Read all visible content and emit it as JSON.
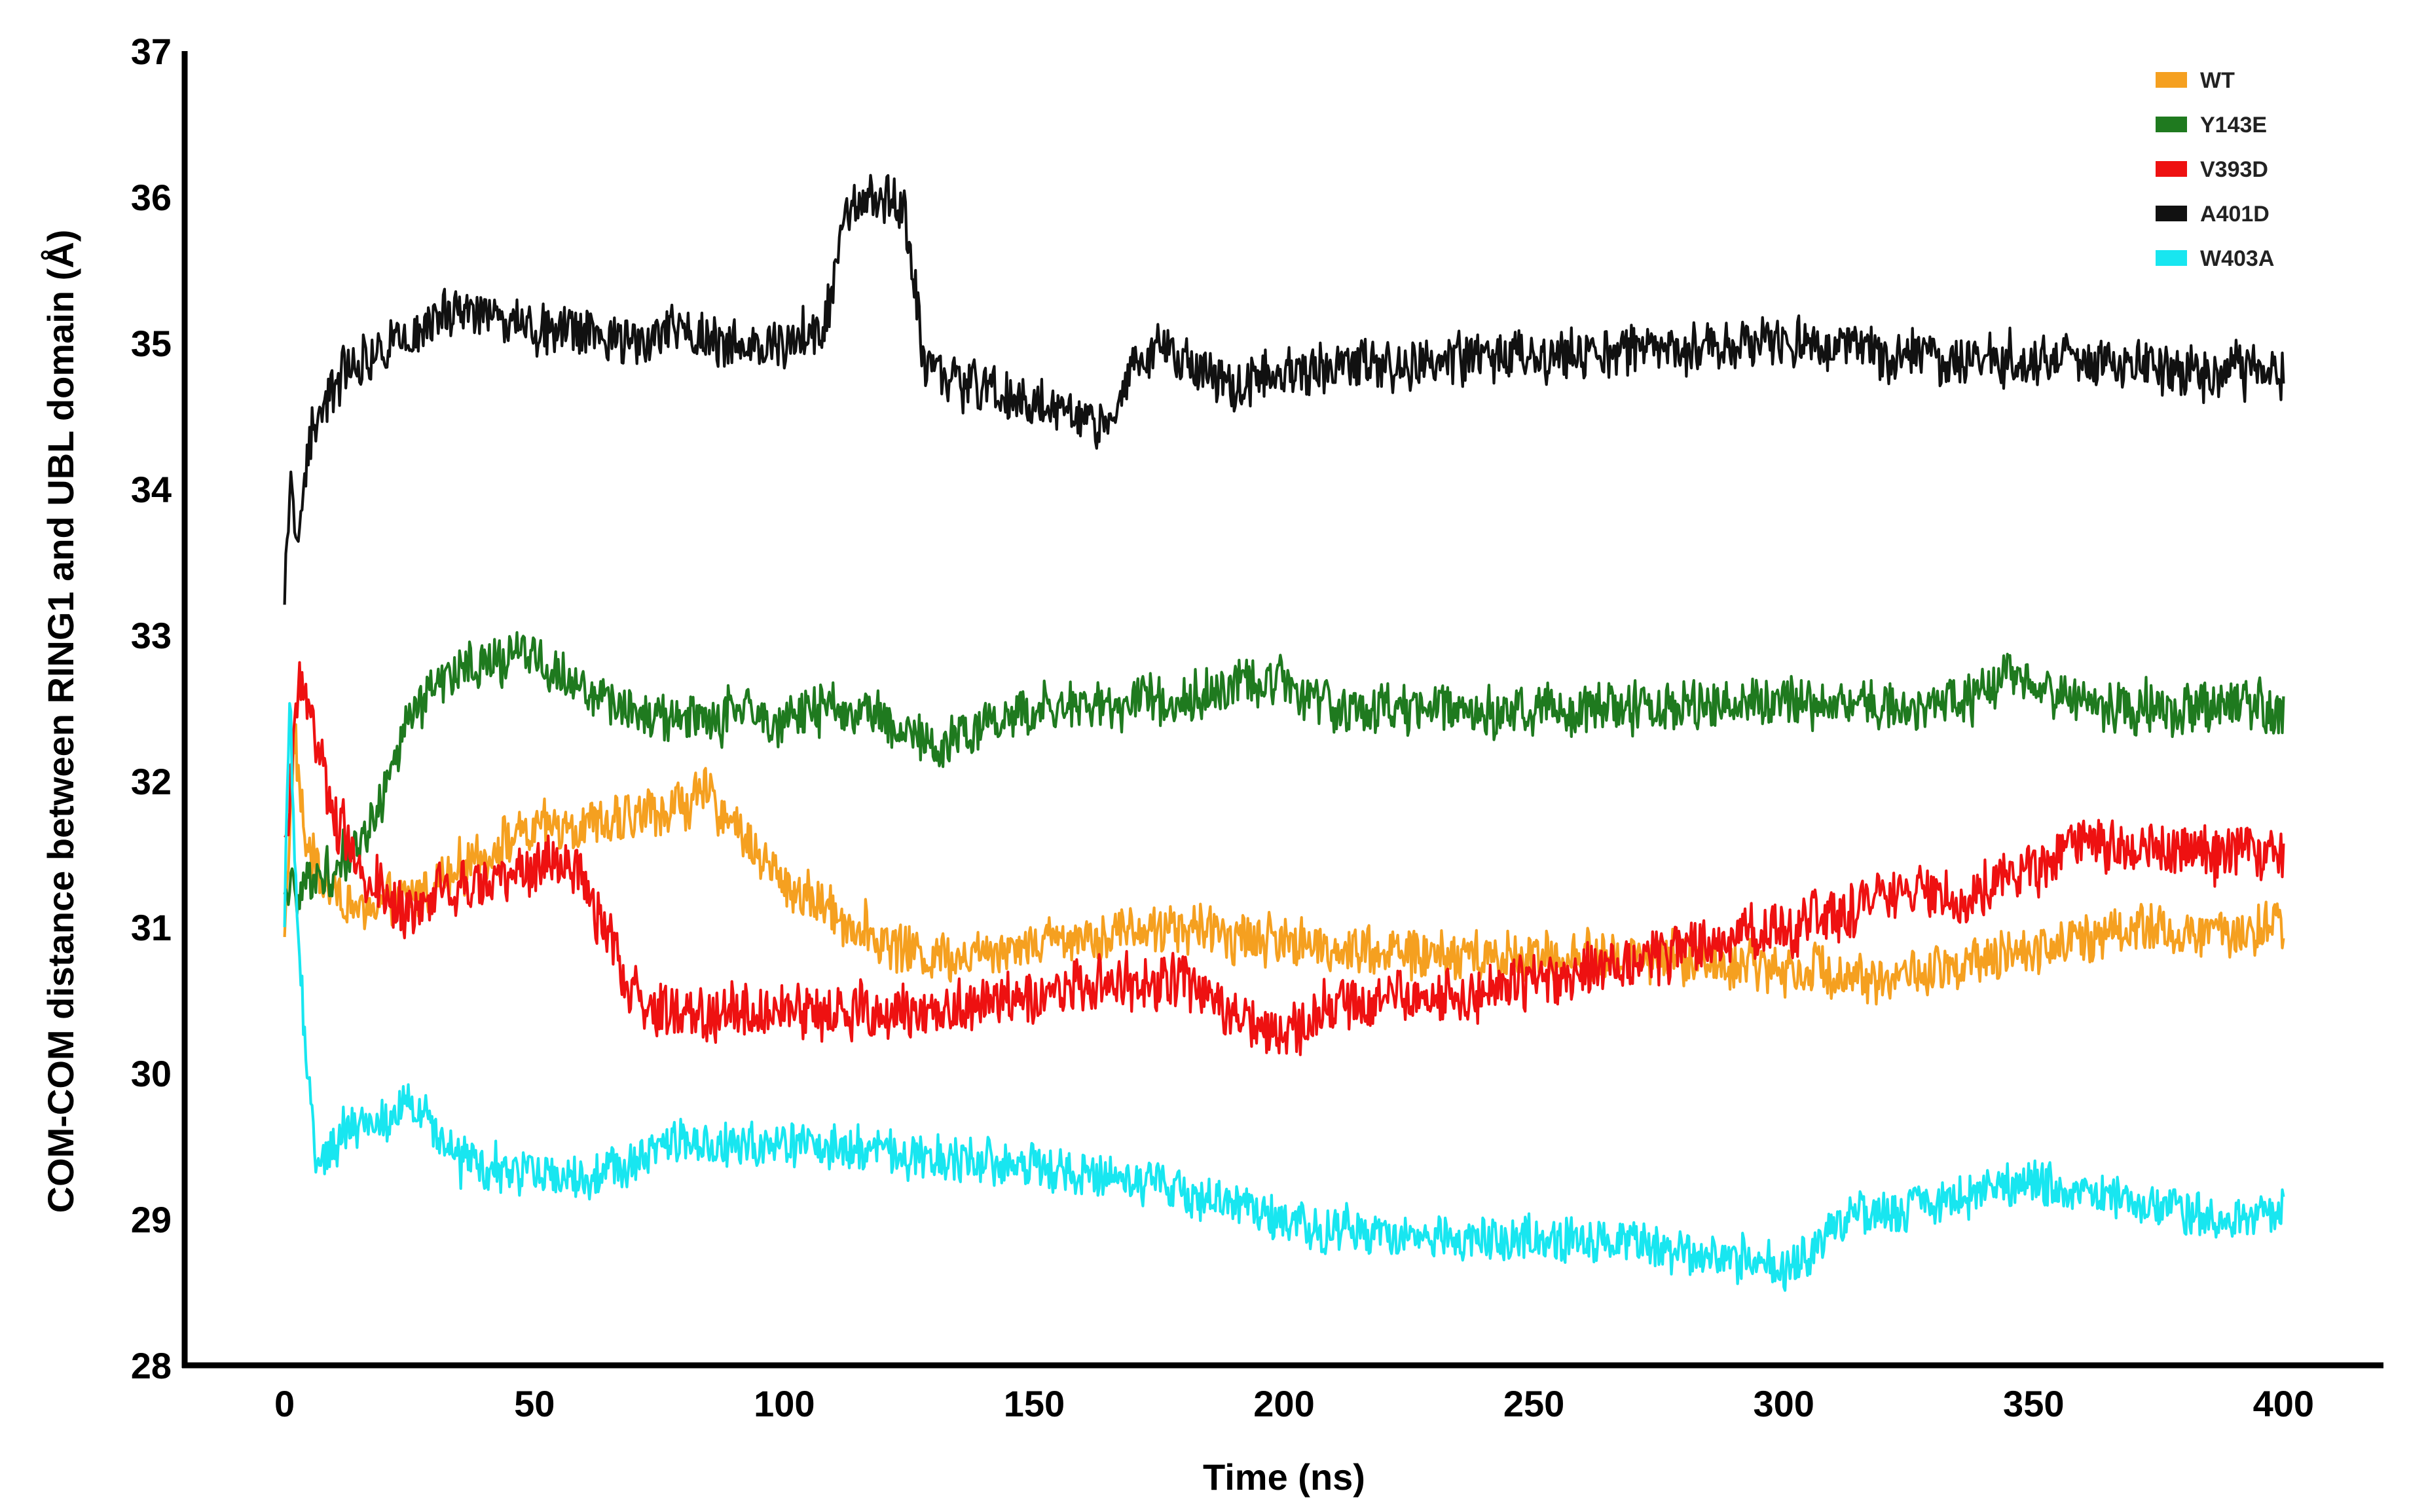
{
  "chart_data": {
    "type": "line",
    "title": "",
    "xlabel": "Time (ns)",
    "ylabel": "COM-COM distance between RING1 and UBL domain (Å)",
    "xlim": [
      -20,
      420
    ],
    "ylim": [
      28,
      37
    ],
    "x_ticks": [
      0,
      50,
      100,
      150,
      200,
      250,
      300,
      350,
      400
    ],
    "y_ticks": [
      28,
      29,
      30,
      31,
      32,
      33,
      34,
      35,
      36,
      37
    ],
    "grid": false,
    "legend_position": "top-right",
    "series": [
      {
        "name": "WT",
        "color": "#f5a020",
        "noise": 0.2,
        "x": [
          0,
          2,
          4,
          8,
          15,
          25,
          35,
          45,
          55,
          65,
          75,
          85,
          90,
          95,
          100,
          105,
          110,
          120,
          130,
          140,
          150,
          160,
          175,
          190,
          200,
          215,
          230,
          250,
          270,
          290,
          310,
          320,
          330,
          340,
          350,
          360,
          370,
          380,
          390,
          400
        ],
        "y": [
          31.0,
          32.3,
          31.6,
          31.3,
          31.1,
          31.2,
          31.4,
          31.6,
          31.7,
          31.7,
          31.8,
          31.9,
          31.7,
          31.5,
          31.3,
          31.2,
          31.1,
          30.9,
          30.8,
          30.85,
          30.9,
          30.95,
          31.0,
          30.95,
          30.9,
          30.85,
          30.8,
          30.8,
          30.8,
          30.75,
          30.7,
          30.65,
          30.7,
          30.75,
          30.85,
          30.95,
          31.0,
          30.95,
          30.95,
          31.0
        ]
      },
      {
        "name": "Y143E",
        "color": "#1f7a1f",
        "noise": 0.2,
        "x": [
          0,
          5,
          10,
          15,
          20,
          25,
          30,
          40,
          50,
          55,
          60,
          70,
          80,
          90,
          100,
          110,
          120,
          130,
          140,
          150,
          175,
          200,
          210,
          230,
          250,
          270,
          290,
          310,
          330,
          340,
          345,
          350,
          370,
          390,
          400
        ],
        "y": [
          31.2,
          31.3,
          31.4,
          31.6,
          31.9,
          32.4,
          32.7,
          32.8,
          32.9,
          32.7,
          32.6,
          32.5,
          32.4,
          32.45,
          32.45,
          32.5,
          32.45,
          32.2,
          32.4,
          32.5,
          32.55,
          32.7,
          32.5,
          32.5,
          32.5,
          32.5,
          32.55,
          32.55,
          32.5,
          32.6,
          32.8,
          32.6,
          32.5,
          32.5,
          32.5
        ]
      },
      {
        "name": "V393D",
        "color": "#ee1111",
        "noise": 0.22,
        "x": [
          0,
          3,
          6,
          10,
          15,
          20,
          25,
          30,
          40,
          50,
          55,
          60,
          65,
          70,
          80,
          100,
          120,
          140,
          160,
          180,
          190,
          200,
          210,
          220,
          240,
          260,
          280,
          300,
          320,
          340,
          350,
          360,
          370,
          380,
          390,
          400
        ],
        "y": [
          31.5,
          32.7,
          32.3,
          31.8,
          31.4,
          31.2,
          31.1,
          31.2,
          31.3,
          31.4,
          31.5,
          31.3,
          30.9,
          30.5,
          30.4,
          30.45,
          30.4,
          30.5,
          30.6,
          30.65,
          30.4,
          30.3,
          30.45,
          30.5,
          30.55,
          30.7,
          30.85,
          31.0,
          31.2,
          31.25,
          31.4,
          31.6,
          31.55,
          31.5,
          31.5,
          31.5
        ]
      },
      {
        "name": "A401D",
        "color": "#111111",
        "noise": 0.2,
        "x": [
          0,
          1,
          3,
          5,
          8,
          12,
          20,
          30,
          40,
          50,
          60,
          70,
          80,
          90,
          100,
          108,
          112,
          118,
          124,
          128,
          135,
          150,
          160,
          165,
          170,
          175,
          180,
          190,
          200,
          220,
          250,
          280,
          300,
          320,
          340,
          360,
          380,
          390,
          400
        ],
        "y": [
          33.3,
          34.0,
          33.7,
          34.4,
          34.6,
          34.8,
          35.0,
          35.2,
          35.2,
          35.1,
          35.1,
          35.0,
          35.1,
          35.0,
          35.0,
          35.1,
          35.9,
          36.0,
          35.9,
          34.9,
          34.7,
          34.6,
          34.5,
          34.4,
          34.8,
          35.0,
          34.9,
          34.7,
          34.8,
          34.85,
          34.9,
          34.95,
          35.0,
          34.9,
          34.9,
          34.9,
          34.8,
          34.8,
          34.8
        ]
      },
      {
        "name": "W403A",
        "color": "#18e6f0",
        "noise": 0.18,
        "x": [
          0,
          1,
          2,
          4,
          6,
          8,
          12,
          20,
          25,
          35,
          50,
          60,
          70,
          75,
          80,
          100,
          120,
          140,
          150,
          170,
          190,
          200,
          220,
          240,
          260,
          280,
          290,
          300,
          305,
          310,
          320,
          330,
          340,
          350,
          360,
          370,
          380,
          390,
          400
        ],
        "y": [
          31.0,
          32.6,
          31.5,
          30.2,
          29.5,
          29.4,
          29.6,
          29.7,
          29.8,
          29.4,
          29.3,
          29.3,
          29.4,
          29.5,
          29.5,
          29.5,
          29.45,
          29.4,
          29.35,
          29.25,
          29.1,
          28.95,
          28.9,
          28.85,
          28.85,
          28.8,
          28.75,
          28.7,
          28.75,
          29.0,
          29.05,
          29.1,
          29.2,
          29.25,
          29.2,
          29.1,
          29.05,
          29.0,
          29.05
        ]
      }
    ]
  }
}
